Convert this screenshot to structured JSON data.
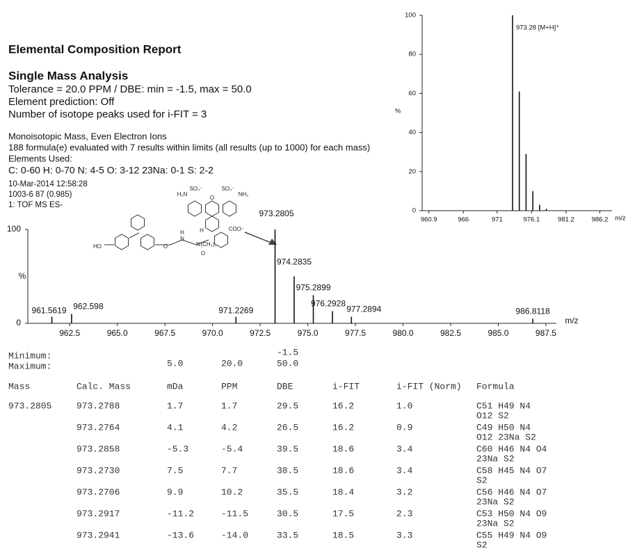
{
  "header": {
    "title": "Elemental Composition Report",
    "subtitle": "Single Mass Analysis",
    "lines": [
      "Tolerance = 20.0 PPM   /   DBE: min = -1.5, max = 50.0",
      "Element prediction: Off",
      "Number of isotope peaks used for i-FIT = 3"
    ],
    "info": [
      "Monoisotopic Mass, Even Electron Ions",
      "188 formula(e) evaluated with 7 results within limits (all results (up to 1000) for each mass)",
      "Elements Used:"
    ],
    "elements": "C: 0-60   H: 0-70   N: 4-5   O: 3-12   23Na: 0-1   S: 2-2",
    "run": [
      "10-Mar-2014  12:58:28",
      "1003-6 87 (0.985)",
      "1: TOF MS ES-"
    ]
  },
  "structure": {
    "labels": [
      "H₂N",
      "SO₃⁻",
      "SO₃⁻",
      "NH₂",
      "O",
      "HO",
      "O",
      "H",
      "N",
      "H",
      "(CH₂)₃",
      "N",
      "O",
      "COO⁻"
    ]
  },
  "chart_data": [
    {
      "type": "stem",
      "x": [
        973.28,
        974.28,
        975.28,
        976.28,
        977.28,
        978.28
      ],
      "values": [
        100,
        61,
        29,
        10,
        3,
        1
      ],
      "annotation": "973.28 [M+H]⁺",
      "color": "#111111",
      "xlabel": "m/z",
      "ylabel": "%",
      "xlim": [
        959.9,
        988
      ],
      "ylim": [
        0,
        100
      ],
      "xticks": [
        960.9,
        966,
        971,
        976.1,
        981.2,
        986.2
      ],
      "yticks": [
        0,
        20,
        40,
        60,
        80,
        100
      ]
    },
    {
      "type": "stem",
      "x": [
        961.5619,
        962.598,
        971.2269,
        973.2805,
        974.2835,
        975.2899,
        976.2928,
        977.2894,
        986.8118
      ],
      "values": [
        7,
        10,
        7,
        100,
        50,
        30,
        13,
        7,
        5
      ],
      "color": "#111111",
      "xlabel": "m/z",
      "ylabel": "%",
      "xlim": [
        960.3,
        988.05
      ],
      "ylim": [
        0,
        100
      ],
      "xticks": [
        962.5,
        {
          "value": 965,
          "label": "965.0"
        },
        967.5,
        {
          "value": 970,
          "label": "970.0"
        },
        972.5,
        {
          "value": 975,
          "label": "975.0"
        },
        977.5,
        {
          "value": 980,
          "label": "980.0"
        },
        982.5,
        {
          "value": 985,
          "label": "985.0"
        },
        987.5
      ],
      "yticks": [
        0,
        100
      ]
    }
  ],
  "table": {
    "minimum_label": "Minimum:",
    "maximum_label": "Maximum:",
    "minimum": [
      "",
      "",
      "",
      "-1.5"
    ],
    "maximum": [
      "",
      "5.0",
      "20.0",
      "50.0"
    ],
    "columns": [
      "Mass",
      "Calc. Mass",
      "mDa",
      "PPM",
      "DBE",
      "i-FIT",
      "i-FIT (Norm)",
      "Formula"
    ],
    "rows": [
      [
        "973.2805",
        "973.2788",
        "1.7",
        "1.7",
        "29.5",
        "16.2",
        "1.0",
        [
          "C51  H49  N4",
          "O12  S2"
        ]
      ],
      [
        null,
        "973.2764",
        "4.1",
        "4.2",
        "26.5",
        "16.2",
        "0.9",
        [
          "C49  H50  N4",
          "O12  23Na  S2"
        ]
      ],
      [
        null,
        "973.2858",
        "-5.3",
        "-5.4",
        "39.5",
        "18.6",
        "3.4",
        [
          "C60  H46  N4  O4",
          "23Na  S2"
        ]
      ],
      [
        null,
        "973.2730",
        "7.5",
        "7.7",
        "38.5",
        "18.6",
        "3.4",
        [
          "C58  H45  N4  O7",
          "S2"
        ]
      ],
      [
        null,
        "973.2706",
        "9.9",
        "10.2",
        "35.5",
        "18.4",
        "3.2",
        [
          "C56  H46  N4  O7",
          "23Na  S2"
        ]
      ],
      [
        null,
        "973.2917",
        "-11.2",
        "-11.5",
        "30.5",
        "17.5",
        "2.3",
        [
          "C53  H50  N4  O9",
          "23Na  S2"
        ]
      ],
      [
        null,
        "973.2941",
        "-13.6",
        "-14.0",
        "33.5",
        "18.5",
        "3.3",
        [
          "C55  H49  N4  O9",
          "S2"
        ]
      ]
    ]
  }
}
